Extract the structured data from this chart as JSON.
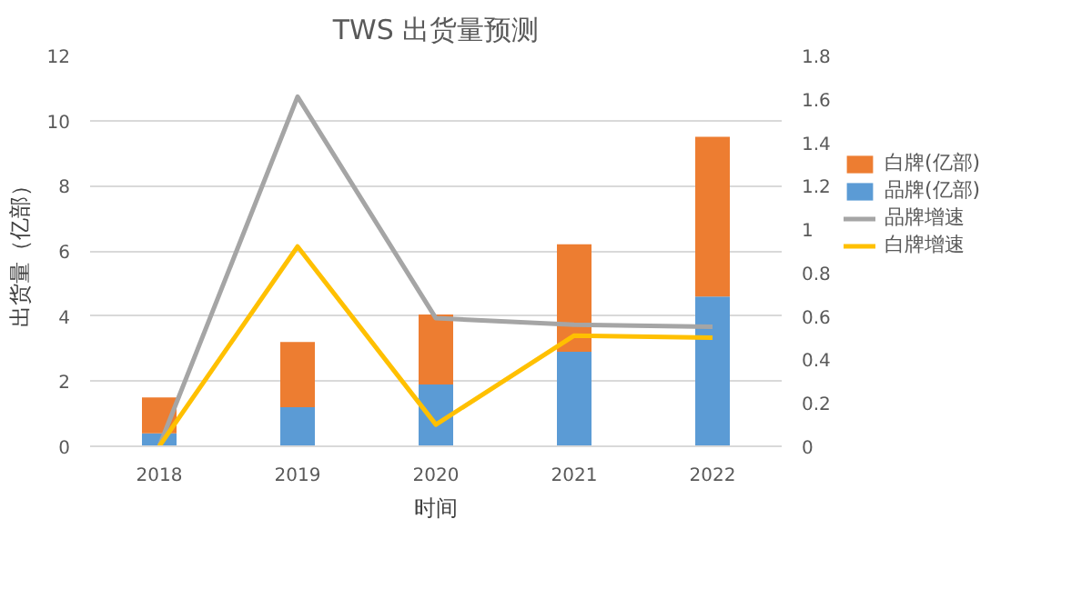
{
  "chart_data": {
    "type": "bar",
    "title": "TWS 出货量预测",
    "xlabel": "时间",
    "ylabel": "出货量（亿部）",
    "categories": [
      "2018",
      "2019",
      "2020",
      "2021",
      "2022"
    ],
    "stacked": true,
    "series": [
      {
        "name": "品牌(亿部)",
        "color": "#5b9bd5",
        "values": [
          0.4,
          1.2,
          1.9,
          2.9,
          4.6
        ]
      },
      {
        "name": "白牌(亿部)",
        "color": "#ed7d31",
        "values": [
          1.1,
          2.0,
          2.15,
          3.3,
          4.9
        ]
      },
      {
        "name": "品牌增速",
        "type": "line",
        "axis": "y2",
        "color": "#a5a5a5",
        "values": [
          0,
          1.61,
          0.59,
          0.56,
          0.55
        ]
      },
      {
        "name": "白牌增速",
        "type": "line",
        "axis": "y2",
        "color": "#ffc000",
        "values": [
          0,
          0.92,
          0.1,
          0.51,
          0.5
        ]
      }
    ],
    "ylim": [
      0,
      12
    ],
    "yticks": [
      0,
      2,
      4,
      6,
      8,
      10,
      12
    ],
    "y2lim": [
      0,
      1.8
    ],
    "y2ticks": [
      0,
      {
        "value": 0.2,
        "label": "0.2"
      },
      {
        "value": 0.4,
        "label": "0.4"
      },
      {
        "value": 0.6,
        "label": "0.6"
      },
      {
        "value": 0.8,
        "label": "0.8"
      },
      1,
      {
        "value": 1.2,
        "label": "1.2"
      },
      {
        "value": 1.4,
        "label": "1.4"
      },
      {
        "value": 1.6,
        "label": "1.6"
      },
      {
        "value": 1.8,
        "label": "1.8"
      }
    ],
    "grid": "y",
    "legend": "right",
    "marker": "none",
    "line_style": "solid"
  }
}
